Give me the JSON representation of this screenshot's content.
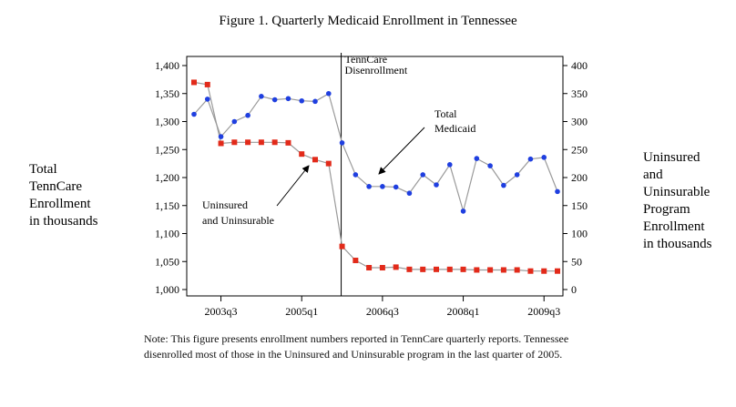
{
  "chart_data": {
    "type": "line",
    "title": "Figure 1. Quarterly Medicaid Enrollment in Tennessee",
    "x_tick_labels": [
      "2003q3",
      "2005q1",
      "2006q3",
      "2008q1",
      "2009q3"
    ],
    "left_axis_label": [
      "Total",
      "TennCare",
      "Enrollment",
      "in thousands"
    ],
    "right_axis_label": [
      "Uninsured",
      "and",
      "Uninsurable",
      "Program",
      "Enrollment",
      "in thousands"
    ],
    "left_ylim": [
      1000,
      1400
    ],
    "left_ticks": [
      "1,000",
      "1,050",
      "1,100",
      "1,150",
      "1,200",
      "1,250",
      "1,300",
      "1,350",
      "1,400"
    ],
    "right_ylim": [
      0,
      400
    ],
    "right_ticks": [
      "0",
      "50",
      "100",
      "150",
      "200",
      "250",
      "300",
      "350",
      "400"
    ],
    "x": [
      "2003q1",
      "2003q2",
      "2003q3",
      "2003q4",
      "2004q1",
      "2004q2",
      "2004q3",
      "2004q4",
      "2005q1",
      "2005q2",
      "2005q3",
      "2005q4",
      "2006q1",
      "2006q2",
      "2006q3",
      "2006q4",
      "2007q1",
      "2007q2",
      "2007q3",
      "2007q4",
      "2008q1",
      "2008q2",
      "2008q3",
      "2008q4",
      "2009q1",
      "2009q2",
      "2009q3",
      "2009q4"
    ],
    "series": [
      {
        "axis": "left",
        "color": "#1f3fe0",
        "marker": "circle",
        "values": [
          1313,
          1340,
          1273,
          1300,
          1311,
          1345,
          1339,
          1341,
          1337,
          1336,
          1350,
          1262,
          1205,
          1184,
          1184,
          1183,
          1172,
          1205,
          1187,
          1223,
          1140,
          1234,
          1221,
          1186,
          1205,
          1233,
          1236,
          1175
        ]
      },
      {
        "axis": "right",
        "color": "#e22a1a",
        "marker": "square",
        "values": [
          370,
          366,
          261,
          263,
          263,
          263,
          263,
          262,
          242,
          232,
          225,
          77,
          52,
          39,
          39,
          40,
          36,
          36,
          36,
          36,
          36,
          35,
          35,
          35,
          35,
          33,
          33,
          33
        ]
      }
    ],
    "line_color": "#9a9a9a",
    "event_line": {
      "x": "2005q4",
      "label": [
        "TennCare",
        "Disenrollment"
      ]
    },
    "annotations": [
      {
        "text": [
          "Total",
          "Medicaid"
        ]
      },
      {
        "text": [
          "Uninsured",
          "and Uninsurable"
        ]
      }
    ],
    "grid": false
  },
  "note": "Note: This figure presents enrollment numbers reported in TennCare quarterly reports. Tennessee disenrolled most of those in the Uninsured and Uninsurable program in the last quarter of 2005."
}
